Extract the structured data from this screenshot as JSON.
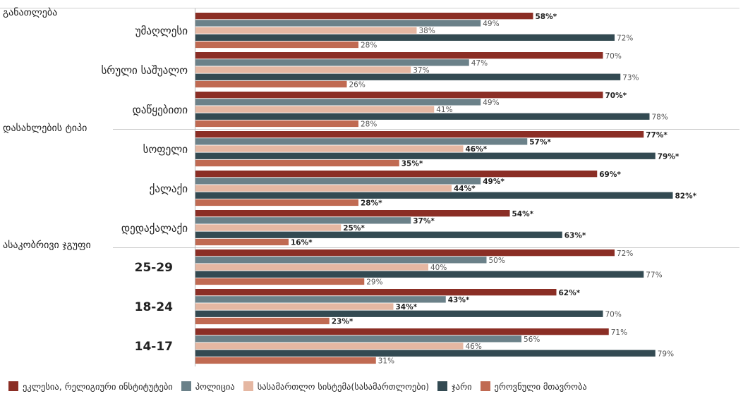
{
  "chart_data": {
    "type": "bar",
    "orientation": "horizontal",
    "xlim": [
      0,
      100
    ],
    "grid": false,
    "legend_position": "bottom",
    "series": [
      {
        "name": "ეკლესია, რელიგიური ინსტიტუტები",
        "color": "#8b2e25"
      },
      {
        "name": "პოლიცია",
        "color": "#6b8189"
      },
      {
        "name": "სასამართლო სისტემა(სასამართლოები)",
        "color": "#e5b7a2"
      },
      {
        "name": "ჯარი",
        "color": "#334a52"
      },
      {
        "name": "ეროვნული მთავრობა",
        "color": "#c06a52"
      }
    ],
    "groups": [
      {
        "title": "განათლება",
        "categories": [
          {
            "label": "უმაღლესი",
            "values": [
              58,
              49,
              38,
              72,
              28
            ],
            "labels": [
              "58%*",
              "49%",
              "38%",
              "72%",
              "28%"
            ]
          },
          {
            "label": "სრული საშუალო",
            "values": [
              70,
              47,
              37,
              73,
              26
            ],
            "labels": [
              "70%",
              "47%",
              "37%",
              "73%",
              "26%"
            ]
          },
          {
            "label": "დაწყებითი",
            "values": [
              70,
              49,
              41,
              78,
              28
            ],
            "labels": [
              "70%*",
              "49%",
              "41%",
              "78%",
              "28%"
            ]
          }
        ]
      },
      {
        "title": "დასახლების ტიპი",
        "categories": [
          {
            "label": "სოფელი",
            "values": [
              77,
              57,
              46,
              79,
              35
            ],
            "labels": [
              "77%*",
              "57%*",
              "46%*",
              "79%*",
              "35%*"
            ]
          },
          {
            "label": "ქალაქი",
            "values": [
              69,
              49,
              44,
              82,
              28
            ],
            "labels": [
              "69%*",
              "49%*",
              "44%*",
              "82%*",
              "28%*"
            ]
          },
          {
            "label": "დედაქალაქი",
            "values": [
              54,
              37,
              25,
              63,
              16
            ],
            "labels": [
              "54%*",
              "37%*",
              "25%*",
              "63%*",
              "16%*"
            ]
          }
        ]
      },
      {
        "title": "ასაკობრივი ჯგუფი",
        "categories": [
          {
            "label": "25-29",
            "values": [
              72,
              50,
              40,
              77,
              29
            ],
            "labels": [
              "72%",
              "50%",
              "40%",
              "77%",
              "29%"
            ]
          },
          {
            "label": "18-24",
            "values": [
              62,
              43,
              34,
              70,
              23
            ],
            "labels": [
              "62%*",
              "43%*",
              "34%*",
              "70%",
              "23%*"
            ]
          },
          {
            "label": "14-17",
            "values": [
              71,
              56,
              46,
              79,
              31
            ],
            "labels": [
              "71%",
              "56%",
              "46%",
              "79%",
              "31%"
            ]
          }
        ]
      }
    ]
  }
}
